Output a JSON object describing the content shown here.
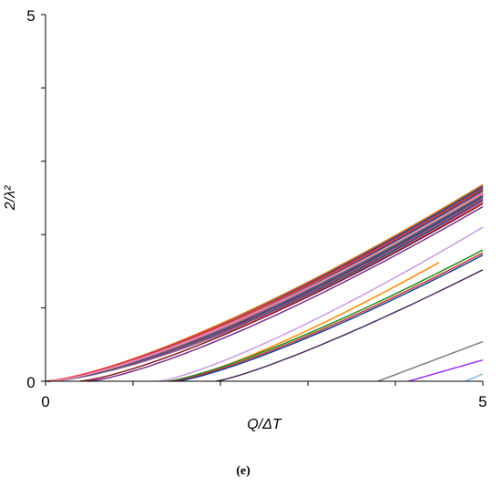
{
  "chart_data": {
    "type": "line",
    "xlabel": "Q/ΔT",
    "ylabel": "2/λ²",
    "caption": "(e)",
    "xlim": [
      0,
      5
    ],
    "ylim": [
      0,
      5
    ],
    "x_ticks": [
      "0",
      "5"
    ],
    "y_ticks": [
      "0",
      "5"
    ],
    "grid": false,
    "colors": {
      "axis": "#000000",
      "palette": [
        "#1f4e9c",
        "#2b6fd6",
        "#e8d81a",
        "#ff00ff",
        "#e8333d",
        "#f48fb1",
        "#1aa7a7",
        "#6a1b9a",
        "#0c2d6b",
        "#3a8a3a",
        "#c71585",
        "#ff7f50",
        "#4169e1",
        "#8b0000",
        "#00bcd4",
        "#9c27b0",
        "#00008b",
        "#795548",
        "#2e8b57",
        "#d2691e"
      ]
    },
    "bundle": {
      "count": 40,
      "x_start": 0.03,
      "x_end": 5.0,
      "y_end_range": [
        2.43,
        2.68
      ],
      "exponent": 1.45
    },
    "series": [
      {
        "color": "#e8333d",
        "x": [
          0.0,
          5.0
        ],
        "y": [
          0.0,
          2.62
        ],
        "exp": 1.35
      },
      {
        "color": "#f48fb1",
        "x": [
          0.05,
          5.0
        ],
        "y": [
          0.0,
          2.56
        ],
        "exp": 1.35
      },
      {
        "color": "#8b1a1a",
        "x": [
          0.4,
          5.0
        ],
        "y": [
          0.0,
          2.42
        ],
        "exp": 1.3
      },
      {
        "color": "#7b2d8b",
        "x": [
          0.5,
          5.0
        ],
        "y": [
          0.0,
          2.38
        ],
        "exp": 1.3
      },
      {
        "color": "#c99be0",
        "x": [
          1.3,
          5.0
        ],
        "y": [
          0.0,
          2.1
        ],
        "exp": 1.25
      },
      {
        "color": "#ff8c00",
        "x": [
          1.45,
          4.5
        ],
        "y": [
          0.0,
          1.62
        ],
        "exp": 1.25
      },
      {
        "color": "#228b22",
        "x": [
          1.4,
          5.0
        ],
        "y": [
          0.0,
          1.79
        ],
        "exp": 1.25
      },
      {
        "color": "#c0392b",
        "x": [
          1.45,
          5.0
        ],
        "y": [
          0.0,
          1.75
        ],
        "exp": 1.25
      },
      {
        "color": "#1f3a93",
        "x": [
          1.5,
          5.0
        ],
        "y": [
          0.0,
          1.72
        ],
        "exp": 1.25
      },
      {
        "color": "#4b2c5e",
        "x": [
          1.95,
          5.0
        ],
        "y": [
          0.0,
          1.52
        ],
        "exp": 1.2
      },
      {
        "color": "#7f7f7f",
        "x": [
          3.8,
          5.0
        ],
        "y": [
          0.0,
          0.54
        ],
        "exp": 1.0
      },
      {
        "color": "#9b30ff",
        "x": [
          4.15,
          5.0
        ],
        "y": [
          0.0,
          0.29
        ],
        "exp": 1.0
      },
      {
        "color": "#87bde8",
        "x": [
          4.8,
          5.0
        ],
        "y": [
          0.0,
          0.1
        ],
        "exp": 1.0
      }
    ]
  }
}
